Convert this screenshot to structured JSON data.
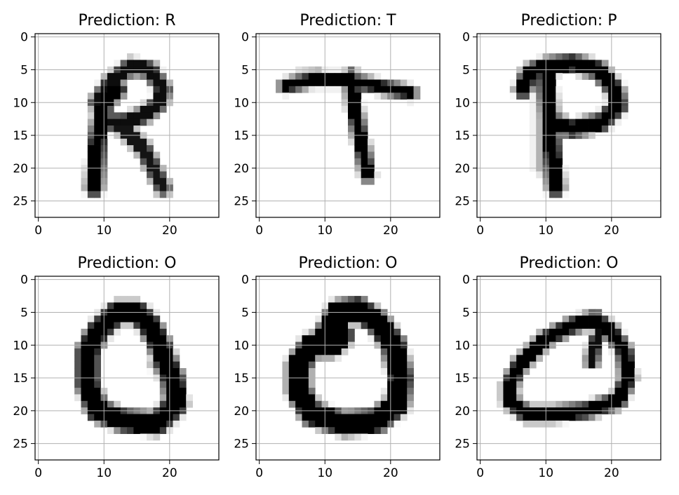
{
  "chart_data": [
    {
      "type": "heatmap",
      "title": "Prediction: R",
      "xlim": [
        -0.5,
        27.5
      ],
      "ylim": [
        27.5,
        -0.5
      ],
      "x_ticks": [
        0,
        10,
        20
      ],
      "y_ticks": [
        0,
        5,
        10,
        15,
        20,
        25
      ],
      "grid": true,
      "colormap": "gray_r",
      "strokes": [
        {
          "points": [
            [
              8.5,
              23
            ],
            [
              9,
              16
            ],
            [
              10,
              10
            ],
            [
              12,
              8
            ]
          ],
          "width": 1.7,
          "value": 1.0
        },
        {
          "points": [
            [
              9,
              10
            ],
            [
              11,
              7
            ],
            [
              14,
              4.5
            ],
            [
              17,
              5
            ],
            [
              19,
              8
            ],
            [
              18.5,
              10
            ],
            [
              16,
              12
            ],
            [
              13,
              13
            ],
            [
              10,
              13
            ]
          ],
          "width": 1.5,
          "value": 0.95
        },
        {
          "points": [
            [
              12,
              13
            ],
            [
              16,
              17
            ],
            [
              19,
              23
            ]
          ],
          "width": 1.4,
          "value": 0.92
        }
      ]
    },
    {
      "type": "heatmap",
      "title": "Prediction: T",
      "xlim": [
        -0.5,
        27.5
      ],
      "ylim": [
        27.5,
        -0.5
      ],
      "x_ticks": [
        0,
        10,
        20
      ],
      "y_ticks": [
        0,
        5,
        10,
        15,
        20,
        25
      ],
      "grid": true,
      "colormap": "gray_r",
      "strokes": [
        {
          "points": [
            [
              4,
              7.5
            ],
            [
              8,
              6.5
            ],
            [
              13,
              6.5
            ],
            [
              18,
              7.5
            ],
            [
              23,
              8.5
            ]
          ],
          "width": 1.2,
          "value": 1.0
        },
        {
          "points": [
            [
              6,
              6
            ],
            [
              9,
              5.5
            ]
          ],
          "width": 0.8,
          "value": 0.35
        },
        {
          "points": [
            [
              14,
              6
            ],
            [
              14.5,
              11
            ],
            [
              15.5,
              16
            ],
            [
              16.5,
              21
            ]
          ],
          "width": 1.3,
          "value": 1.0
        }
      ]
    },
    {
      "type": "heatmap",
      "title": "Prediction: P",
      "xlim": [
        -0.5,
        27.5
      ],
      "ylim": [
        27.5,
        -0.5
      ],
      "x_ticks": [
        0,
        10,
        20
      ],
      "y_ticks": [
        0,
        5,
        10,
        15,
        20,
        25
      ],
      "grid": true,
      "colormap": "gray_r",
      "strokes": [
        {
          "points": [
            [
              6.5,
              8
            ],
            [
              7.5,
              5.5
            ],
            [
              10,
              4.5
            ],
            [
              14,
              4
            ],
            [
              18,
              5
            ],
            [
              20.5,
              8
            ],
            [
              21,
              10.5
            ],
            [
              18.5,
              13
            ],
            [
              14,
              14
            ],
            [
              11,
              13
            ]
          ],
          "width": 1.7,
          "value": 1.0
        },
        {
          "points": [
            [
              10,
              5
            ],
            [
              10.5,
              12
            ],
            [
              11,
              18
            ],
            [
              11.5,
              23
            ]
          ],
          "width": 1.7,
          "value": 1.0
        },
        {
          "points": [
            [
              9.2,
              8
            ],
            [
              9.2,
              20
            ]
          ],
          "width": 0.9,
          "value": 0.3
        }
      ]
    },
    {
      "type": "heatmap",
      "title": "Prediction: O",
      "xlim": [
        -0.5,
        27.5
      ],
      "ylim": [
        27.5,
        -0.5
      ],
      "x_ticks": [
        0,
        10,
        20
      ],
      "y_ticks": [
        0,
        5,
        10,
        15,
        20,
        25
      ],
      "grid": true,
      "colormap": "gray_r",
      "strokes": [
        {
          "points": [
            [
              9,
              8
            ],
            [
              12,
              5
            ],
            [
              15,
              5
            ],
            [
              17,
              7
            ],
            [
              18.5,
              10
            ],
            [
              19.5,
              13
            ],
            [
              20.5,
              15
            ],
            [
              21,
              19
            ],
            [
              18,
              22
            ],
            [
              13,
              21.5
            ],
            [
              9,
              20
            ],
            [
              7.5,
              16
            ],
            [
              7.5,
              11
            ],
            [
              9,
              8
            ]
          ],
          "width": 2.4,
          "value": 1.0
        },
        {
          "points": [
            [
              18,
              13
            ],
            [
              20,
              15.5
            ]
          ],
          "width": 1.0,
          "value": 0.55
        }
      ]
    },
    {
      "type": "heatmap",
      "title": "Prediction: O",
      "xlim": [
        -0.5,
        27.5
      ],
      "ylim": [
        27.5,
        -0.5
      ],
      "x_ticks": [
        0,
        10,
        20
      ],
      "y_ticks": [
        0,
        5,
        10,
        15,
        20,
        25
      ],
      "grid": true,
      "colormap": "gray_r",
      "strokes": [
        {
          "points": [
            [
              10,
              9
            ],
            [
              12,
              5
            ],
            [
              15,
              4.5
            ],
            [
              18,
              6.5
            ],
            [
              20.5,
              10
            ],
            [
              21.5,
              15
            ],
            [
              21,
              19
            ],
            [
              18,
              21.5
            ],
            [
              13,
              22
            ],
            [
              8,
              20.5
            ],
            [
              6,
              17
            ],
            [
              6,
              13
            ],
            [
              8,
              10
            ],
            [
              11,
              10
            ],
            [
              12.5,
              8.5
            ],
            [
              11.5,
              7
            ]
          ],
          "width": 2.6,
          "value": 1.0
        },
        {
          "points": [
            [
              6,
              12
            ],
            [
              6.5,
              19
            ]
          ],
          "width": 1.6,
          "value": 1.0
        }
      ]
    },
    {
      "type": "heatmap",
      "title": "Prediction: O",
      "xlim": [
        -0.5,
        27.5
      ],
      "ylim": [
        27.5,
        -0.5
      ],
      "x_ticks": [
        0,
        10,
        20
      ],
      "y_ticks": [
        0,
        5,
        10,
        15,
        20,
        25
      ],
      "grid": true,
      "colormap": "gray_r",
      "strokes": [
        {
          "points": [
            [
              6,
              13
            ],
            [
              10,
              9
            ],
            [
              14,
              7
            ],
            [
              17.5,
              6
            ],
            [
              20,
              8
            ],
            [
              22,
              11
            ],
            [
              22.5,
              15
            ],
            [
              21,
              18.5
            ],
            [
              16,
              20
            ],
            [
              11,
              20.5
            ],
            [
              7,
              20.5
            ],
            [
              4.5,
              18.5
            ],
            [
              4.5,
              16
            ],
            [
              6,
              13
            ]
          ],
          "width": 1.5,
          "value": 1.0
        },
        {
          "points": [
            [
              17,
              12.5
            ],
            [
              17.5,
              9.5
            ],
            [
              18.5,
              8
            ]
          ],
          "width": 1.1,
          "value": 0.95
        }
      ]
    }
  ]
}
